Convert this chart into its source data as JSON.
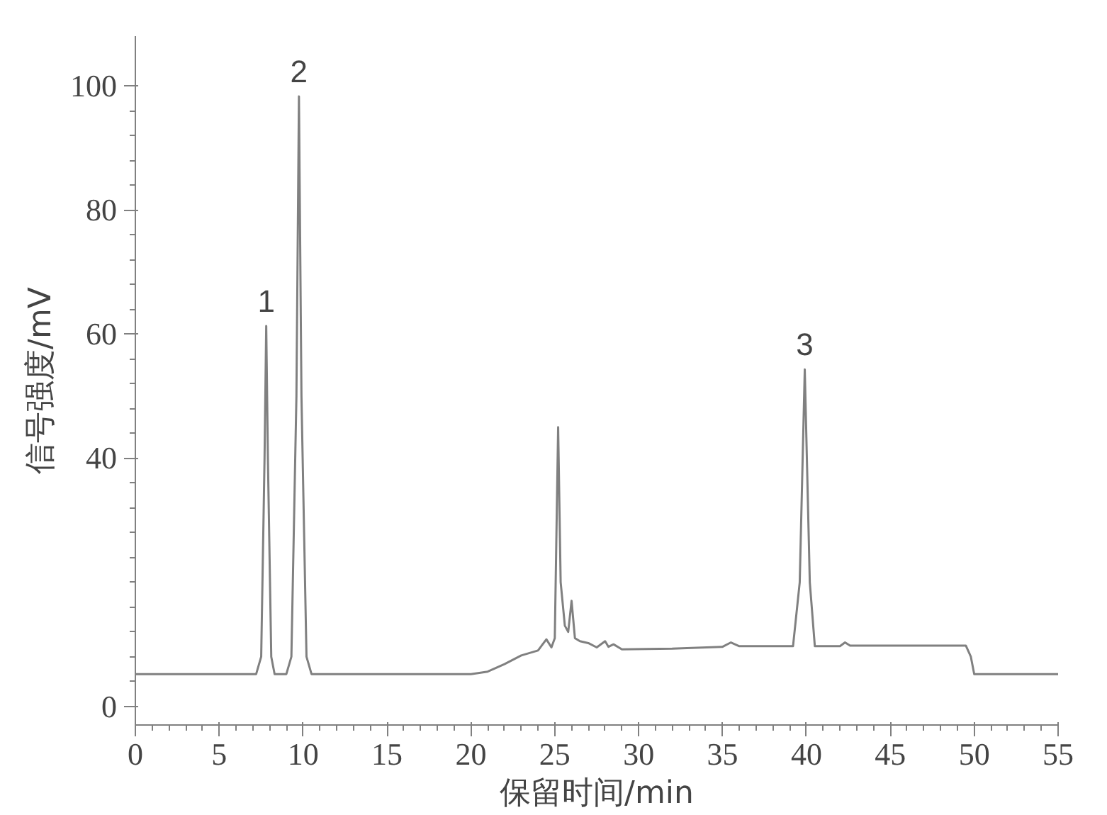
{
  "chart_data": {
    "type": "line",
    "xlabel": "保留时间/min",
    "ylabel": "信号强度/mV",
    "x": [
      0,
      3,
      7.2,
      7.5,
      7.7,
      7.8,
      7.9,
      8.1,
      8.3,
      9.0,
      9.3,
      9.6,
      9.75,
      9.9,
      10.2,
      10.5,
      20,
      21,
      22,
      23,
      24,
      24.5,
      24.8,
      25.0,
      25.2,
      25.35,
      25.6,
      25.8,
      26.0,
      26.2,
      26.5,
      27,
      27.5,
      28,
      28.2,
      28.5,
      29,
      32,
      35,
      35.5,
      36,
      39.2,
      39.6,
      39.9,
      40.2,
      40.5,
      42,
      42.3,
      42.6,
      49.5,
      49.8,
      50,
      55
    ],
    "series": [
      {
        "color": "#808080",
        "values": [
          5.2,
          5.2,
          5.2,
          8,
          40,
          61.3,
          40,
          8,
          5.2,
          5.2,
          8,
          50,
          98.3,
          50,
          8,
          5.2,
          5.2,
          5.6,
          6.8,
          8.2,
          9,
          10.8,
          9.5,
          11,
          45,
          20,
          13,
          12,
          17,
          11,
          10.5,
          10.2,
          9.5,
          10.5,
          9.6,
          10,
          9.2,
          9.3,
          9.6,
          10.3,
          9.7,
          9.7,
          20,
          54.3,
          20,
          9.7,
          9.7,
          10.3,
          9.8,
          9.8,
          8,
          5.2,
          5.2
        ]
      }
    ],
    "annotations": [
      {
        "text": "1",
        "x": 7.8,
        "y": 61.3
      },
      {
        "text": "2",
        "x": 9.75,
        "y": 98.3
      },
      {
        "text": "3",
        "x": 39.9,
        "y": 54.3
      }
    ],
    "xlim": [
      0,
      55
    ],
    "xticks": [
      0,
      5,
      10,
      15,
      20,
      25,
      30,
      35,
      40,
      45,
      50,
      55
    ],
    "ylim": [
      -3,
      108
    ],
    "yticks": [
      0,
      40,
      60,
      80,
      100
    ],
    "grid": false,
    "marker": "none",
    "line_style": "solid"
  }
}
